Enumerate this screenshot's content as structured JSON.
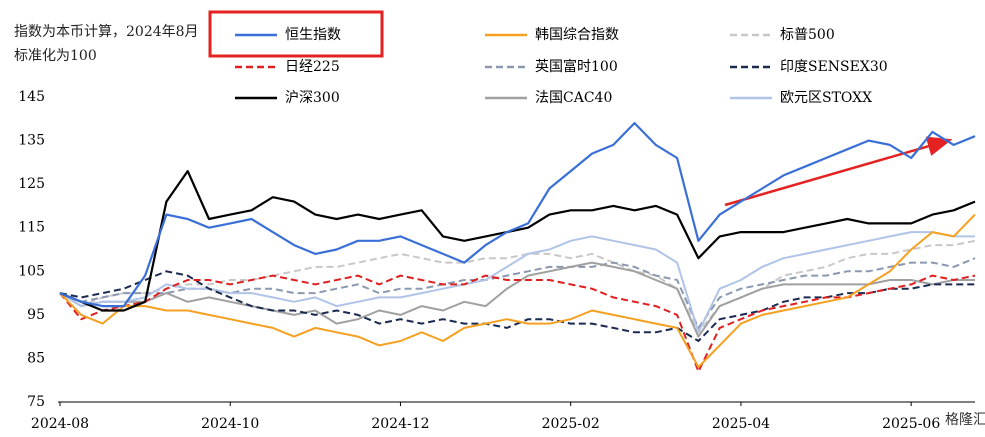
{
  "chart_data": {
    "type": "line",
    "title": "指数为本币计算，2024年8月标准化为100",
    "watermark": "格隆汇",
    "categories": [
      "2024-08",
      null,
      null,
      null,
      null,
      null,
      null,
      null,
      "2024-10",
      null,
      null,
      null,
      null,
      null,
      null,
      null,
      "2024-12",
      null,
      null,
      null,
      null,
      null,
      null,
      null,
      "2025-02",
      null,
      null,
      null,
      null,
      null,
      null,
      null,
      "2025-04",
      null,
      null,
      null,
      null,
      null,
      null,
      null,
      "2025-06",
      null,
      null,
      null
    ],
    "ylim": [
      75,
      145
    ],
    "yticks": [
      75,
      85,
      95,
      105,
      115,
      125,
      135,
      145
    ],
    "grid": false,
    "series": [
      {
        "name": "恒生指数",
        "color": "#3a6fd8",
        "dashed": false,
        "values": [
          100,
          98,
          97,
          97,
          104,
          118,
          117,
          115,
          116,
          117,
          114,
          111,
          109,
          110,
          112,
          112,
          113,
          111,
          109,
          107,
          111,
          114,
          116,
          124,
          128,
          132,
          134,
          139,
          134,
          131,
          112,
          118,
          121,
          124,
          127,
          129,
          131,
          133,
          135,
          134,
          131,
          137,
          134,
          136
        ]
      },
      {
        "name": "韩国综合指数",
        "color": "#f5a020",
        "dashed": false,
        "values": [
          100,
          95,
          93,
          97,
          97,
          96,
          96,
          95,
          94,
          93,
          92,
          90,
          92,
          91,
          90,
          88,
          89,
          91,
          89,
          92,
          93,
          94,
          93,
          93,
          94,
          96,
          95,
          94,
          93,
          92,
          83,
          88,
          93,
          95,
          96,
          97,
          98,
          99,
          102,
          105,
          110,
          114,
          113,
          118
        ]
      },
      {
        "name": "标普500",
        "color": "#c8c8c8",
        "dashed": true,
        "values": [
          100,
          97,
          99,
          100,
          100,
          101,
          102,
          102,
          103,
          103,
          104,
          105,
          106,
          106,
          107,
          108,
          109,
          108,
          107,
          107,
          108,
          108,
          109,
          109,
          108,
          109,
          107,
          105,
          104,
          101,
          91,
          97,
          99,
          101,
          104,
          105,
          106,
          108,
          109,
          109,
          110,
          111,
          111,
          112
        ]
      },
      {
        "name": "日经225",
        "color": "#e02020",
        "dashed": true,
        "values": [
          100,
          94,
          96,
          97,
          98,
          101,
          103,
          103,
          102,
          103,
          104,
          103,
          102,
          103,
          104,
          102,
          104,
          103,
          102,
          102,
          104,
          103,
          103,
          103,
          102,
          101,
          99,
          98,
          97,
          95,
          82,
          92,
          94,
          96,
          97,
          98,
          99,
          99,
          100,
          101,
          102,
          104,
          103,
          104
        ]
      },
      {
        "name": "英国富时100",
        "color": "#8a98b0",
        "dashed": true,
        "values": [
          100,
          98,
          99,
          100,
          100,
          100,
          101,
          101,
          100,
          101,
          101,
          100,
          100,
          101,
          102,
          100,
          101,
          101,
          102,
          103,
          103,
          104,
          105,
          106,
          106,
          106,
          107,
          106,
          104,
          103,
          92,
          99,
          101,
          102,
          103,
          104,
          104,
          105,
          105,
          106,
          107,
          107,
          106,
          108
        ]
      },
      {
        "name": "印度SENSEX30",
        "color": "#1a2a50",
        "dashed": true,
        "values": [
          100,
          99,
          100,
          101,
          103,
          105,
          104,
          101,
          99,
          97,
          96,
          96,
          95,
          96,
          95,
          93,
          94,
          93,
          94,
          93,
          93,
          92,
          94,
          94,
          93,
          93,
          92,
          91,
          91,
          92,
          89,
          94,
          95,
          96,
          98,
          99,
          99,
          100,
          100,
          101,
          101,
          102,
          102,
          102
        ]
      },
      {
        "name": "沪深300",
        "color": "#000000",
        "dashed": false,
        "values": [
          100,
          98,
          96,
          96,
          98,
          121,
          128,
          117,
          118,
          119,
          122,
          121,
          118,
          117,
          118,
          117,
          118,
          119,
          113,
          112,
          113,
          114,
          115,
          118,
          119,
          119,
          120,
          119,
          120,
          118,
          108,
          113,
          114,
          114,
          114,
          115,
          116,
          117,
          116,
          116,
          116,
          118,
          119,
          121
        ]
      },
      {
        "name": "法国CAC40",
        "color": "#a0a0a0",
        "dashed": false,
        "values": [
          100,
          97,
          98,
          98,
          98,
          100,
          98,
          99,
          98,
          97,
          96,
          95,
          96,
          93,
          94,
          96,
          95,
          97,
          96,
          98,
          97,
          101,
          104,
          105,
          106,
          107,
          106,
          105,
          103,
          101,
          90,
          97,
          99,
          101,
          102,
          102,
          102,
          102,
          102,
          103,
          103,
          102,
          103,
          103
        ]
      },
      {
        "name": "欧元区STOXX",
        "color": "#b0c4e8",
        "dashed": false,
        "values": [
          100,
          97,
          98,
          98,
          99,
          102,
          101,
          101,
          100,
          100,
          99,
          98,
          99,
          97,
          98,
          99,
          99,
          100,
          101,
          102,
          103,
          106,
          109,
          110,
          112,
          113,
          112,
          111,
          110,
          107,
          91,
          101,
          103,
          106,
          108,
          109,
          110,
          111,
          112,
          113,
          114,
          114,
          113,
          113
        ]
      }
    ]
  }
}
